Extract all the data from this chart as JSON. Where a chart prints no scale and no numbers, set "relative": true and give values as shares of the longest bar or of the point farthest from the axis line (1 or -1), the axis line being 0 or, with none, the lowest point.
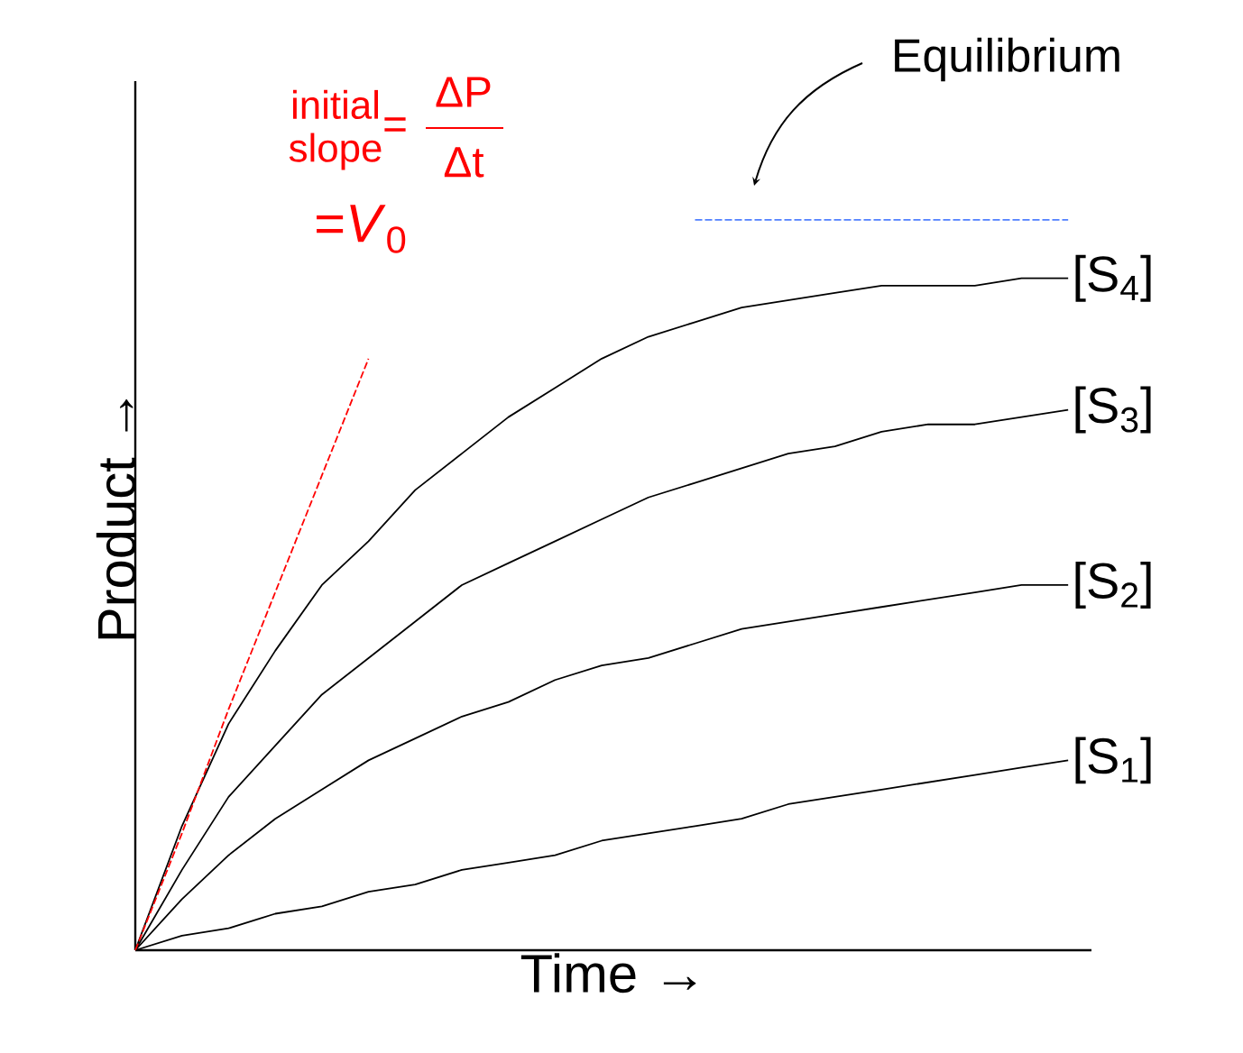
{
  "chart_data": {
    "type": "line",
    "relative": true,
    "xlabel": "Time →",
    "ylabel": "Product →",
    "categories": [
      null,
      null,
      null,
      null,
      null,
      null,
      null,
      null,
      null,
      null,
      null,
      null,
      null,
      null,
      null,
      null,
      null,
      null,
      null,
      null,
      null
    ],
    "series": [
      {
        "name": "[S$_{4}$]",
        "color": "#000000",
        "line_style": "solid",
        "values": [
          0,
          0.17,
          0.31,
          0.41,
          0.5,
          0.56,
          0.63,
          0.68,
          0.73,
          0.77,
          0.81,
          0.84,
          0.86,
          0.88,
          0.89,
          0.9,
          0.91,
          0.91,
          0.91,
          0.92,
          0.92
        ]
      },
      {
        "name": "[S$_{3}$]",
        "color": "#000000",
        "line_style": "solid",
        "values": [
          0,
          0.11,
          0.21,
          0.28,
          0.35,
          0.4,
          0.45,
          0.5,
          0.53,
          0.56,
          0.59,
          0.62,
          0.64,
          0.66,
          0.68,
          0.69,
          0.71,
          0.72,
          0.72,
          0.73,
          0.74
        ]
      },
      {
        "name": "[S$_{2}$]",
        "color": "#000000",
        "line_style": "solid",
        "values": [
          0,
          0.07,
          0.13,
          0.18,
          0.22,
          0.26,
          0.29,
          0.32,
          0.34,
          0.37,
          0.39,
          0.4,
          0.42,
          0.44,
          0.45,
          0.46,
          0.47,
          0.48,
          0.49,
          0.5,
          0.5
        ]
      },
      {
        "name": "[S$_{1}$]",
        "color": "#000000",
        "line_style": "solid",
        "values": [
          0,
          0.02,
          0.03,
          0.05,
          0.06,
          0.08,
          0.09,
          0.11,
          0.12,
          0.13,
          0.15,
          0.16,
          0.17,
          0.18,
          0.2,
          0.21,
          0.22,
          0.23,
          0.24,
          0.25,
          0.26
        ]
      },
      {
        "color": "#ff0000",
        "line_style": "dashed",
        "values": [
          0,
          0.16,
          0.33,
          0.49,
          0.65,
          0.81,
          null,
          null,
          null,
          null,
          null,
          null,
          null,
          null,
          null,
          null,
          null,
          null,
          null,
          null,
          null
        ]
      },
      {
        "color": "#4f7fff",
        "line_style": "dashed",
        "values": [
          null,
          null,
          null,
          null,
          null,
          null,
          null,
          null,
          null,
          null,
          null,
          null,
          1,
          1,
          1,
          1,
          1,
          1,
          1,
          1,
          1
        ]
      }
    ],
    "annotations": [
      "initial",
      "slope",
      "=",
      "ΔP",
      "Δt",
      "=*V*$_{0}$",
      "Equilibrium"
    ]
  }
}
